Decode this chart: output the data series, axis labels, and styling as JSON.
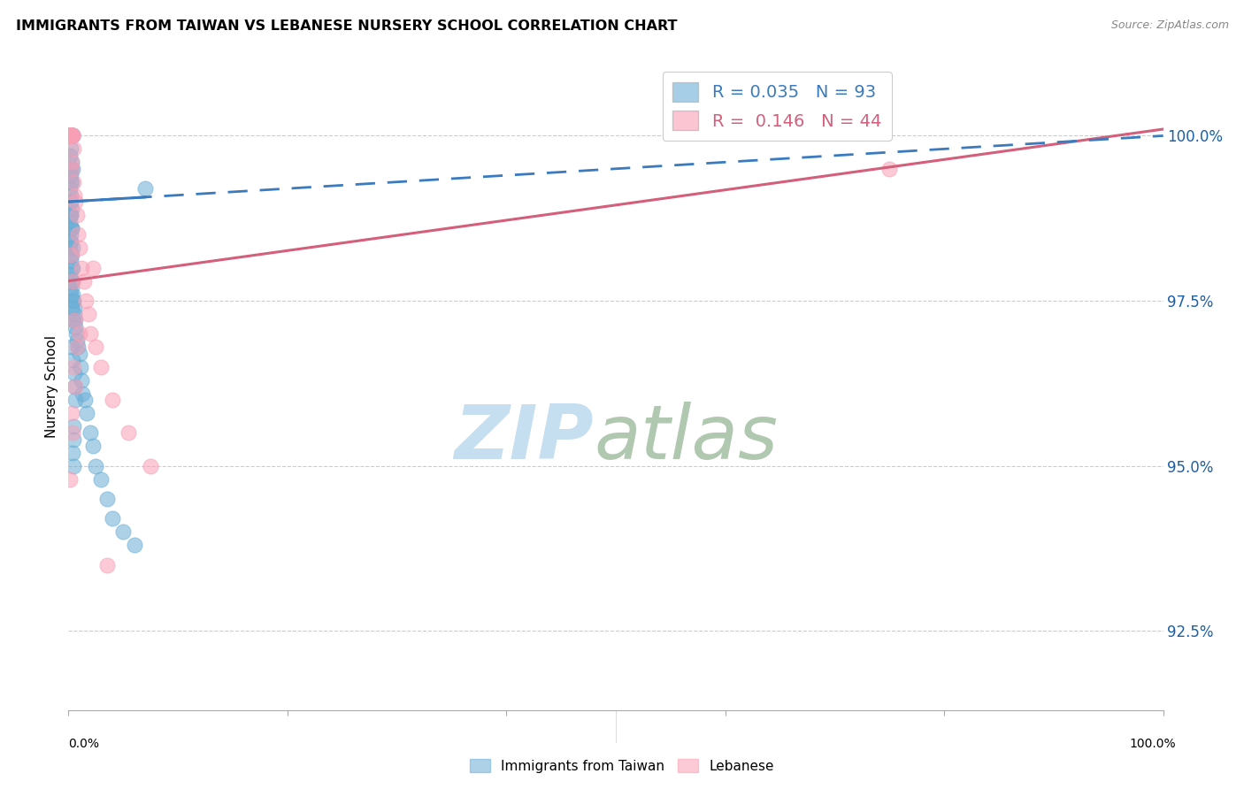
{
  "title": "IMMIGRANTS FROM TAIWAN VS LEBANESE NURSERY SCHOOL CORRELATION CHART",
  "source": "Source: ZipAtlas.com",
  "ylabel": "Nursery School",
  "y_ticks": [
    92.5,
    95.0,
    97.5,
    100.0
  ],
  "y_tick_labels": [
    "92.5%",
    "95.0%",
    "97.5%",
    "100.0%"
  ],
  "x_range": [
    0.0,
    100.0
  ],
  "y_range": [
    91.3,
    101.1
  ],
  "legend_blue_r": "0.035",
  "legend_blue_n": "93",
  "legend_pink_r": "0.146",
  "legend_pink_n": "44",
  "legend_label_blue": "Immigrants from Taiwan",
  "legend_label_pink": "Lebanese",
  "blue_color": "#6baed6",
  "pink_color": "#fa9fb5",
  "blue_line_color": "#3a7abf",
  "pink_line_color": "#d45f7a",
  "watermark_zip": "ZIP",
  "watermark_atlas": "atlas",
  "watermark_color_zip": "#c5dff0",
  "watermark_color_atlas": "#b0c8b0",
  "blue_scatter_x": [
    0.15,
    0.22,
    0.31,
    0.18,
    0.25,
    0.12,
    0.35,
    0.28,
    0.2,
    0.17,
    0.14,
    0.19,
    0.26,
    0.33,
    0.21,
    0.16,
    0.23,
    0.3,
    0.13,
    0.27,
    0.38,
    0.24,
    0.11,
    0.29,
    0.36,
    0.18,
    0.22,
    0.15,
    0.2,
    0.32,
    0.25,
    0.19,
    0.28,
    0.14,
    0.23,
    0.17,
    0.31,
    0.26,
    0.21,
    0.16,
    0.35,
    0.12,
    0.29,
    0.24,
    0.38,
    0.13,
    0.27,
    0.2,
    0.33,
    0.18,
    0.4,
    0.45,
    0.5,
    0.55,
    0.6,
    0.65,
    0.7,
    0.8,
    0.9,
    1.0,
    1.1,
    1.2,
    1.3,
    1.5,
    1.7,
    2.0,
    2.2,
    2.5,
    3.0,
    3.5,
    4.0,
    5.0,
    6.0,
    7.0,
    0.15,
    0.22,
    0.18,
    0.25,
    0.2,
    0.3,
    0.35,
    0.4,
    0.28,
    0.45,
    0.32,
    0.38,
    0.5,
    0.55,
    0.6,
    0.42,
    0.48,
    0.36,
    0.44
  ],
  "blue_scatter_y": [
    100.0,
    100.0,
    100.0,
    100.0,
    100.0,
    100.0,
    100.0,
    100.0,
    100.0,
    100.0,
    100.0,
    100.0,
    100.0,
    100.0,
    100.0,
    100.0,
    100.0,
    100.0,
    100.0,
    100.0,
    100.0,
    99.8,
    99.7,
    99.6,
    99.5,
    99.4,
    99.3,
    99.2,
    99.5,
    99.3,
    99.1,
    99.0,
    98.9,
    98.8,
    98.8,
    98.7,
    98.6,
    98.6,
    98.5,
    98.4,
    98.3,
    98.3,
    98.2,
    98.1,
    98.0,
    97.9,
    97.8,
    97.8,
    97.7,
    97.6,
    97.5,
    97.5,
    97.4,
    97.3,
    97.2,
    97.1,
    97.0,
    96.9,
    96.8,
    96.7,
    96.5,
    96.3,
    96.1,
    96.0,
    95.8,
    95.5,
    95.3,
    95.0,
    94.8,
    94.5,
    94.2,
    94.0,
    93.8,
    99.2,
    99.0,
    98.8,
    98.6,
    98.4,
    98.2,
    98.0,
    97.8,
    97.6,
    97.4,
    97.2,
    96.8,
    96.6,
    96.4,
    96.2,
    96.0,
    95.6,
    95.4,
    95.2,
    95.0
  ],
  "pink_scatter_x": [
    0.1,
    0.18,
    0.25,
    0.15,
    0.3,
    0.22,
    0.35,
    0.12,
    0.28,
    0.2,
    0.38,
    0.16,
    0.42,
    0.32,
    0.26,
    0.48,
    0.55,
    0.65,
    0.75,
    0.9,
    1.05,
    1.2,
    1.4,
    1.6,
    1.8,
    2.0,
    2.5,
    3.0,
    4.0,
    5.5,
    7.5,
    0.2,
    0.35,
    0.5,
    2.2,
    0.8,
    0.12,
    0.4,
    0.6,
    1.0,
    3.5,
    0.28,
    0.45,
    75.0
  ],
  "pink_scatter_y": [
    100.0,
    100.0,
    100.0,
    100.0,
    100.0,
    100.0,
    100.0,
    100.0,
    100.0,
    100.0,
    100.0,
    100.0,
    99.8,
    99.6,
    99.5,
    99.3,
    99.1,
    99.0,
    98.8,
    98.5,
    98.3,
    98.0,
    97.8,
    97.5,
    97.3,
    97.0,
    96.8,
    96.5,
    96.0,
    95.5,
    95.0,
    98.2,
    97.8,
    97.2,
    98.0,
    96.8,
    94.8,
    95.5,
    96.2,
    97.0,
    93.5,
    95.8,
    96.5,
    99.5
  ],
  "blue_trendline_x": [
    0.0,
    100.0
  ],
  "blue_trendline_y_start": 99.0,
  "blue_trendline_y_end": 100.0,
  "pink_trendline_x": [
    0.0,
    100.0
  ],
  "pink_trendline_y_start": 97.8,
  "pink_trendline_y_end": 100.1
}
